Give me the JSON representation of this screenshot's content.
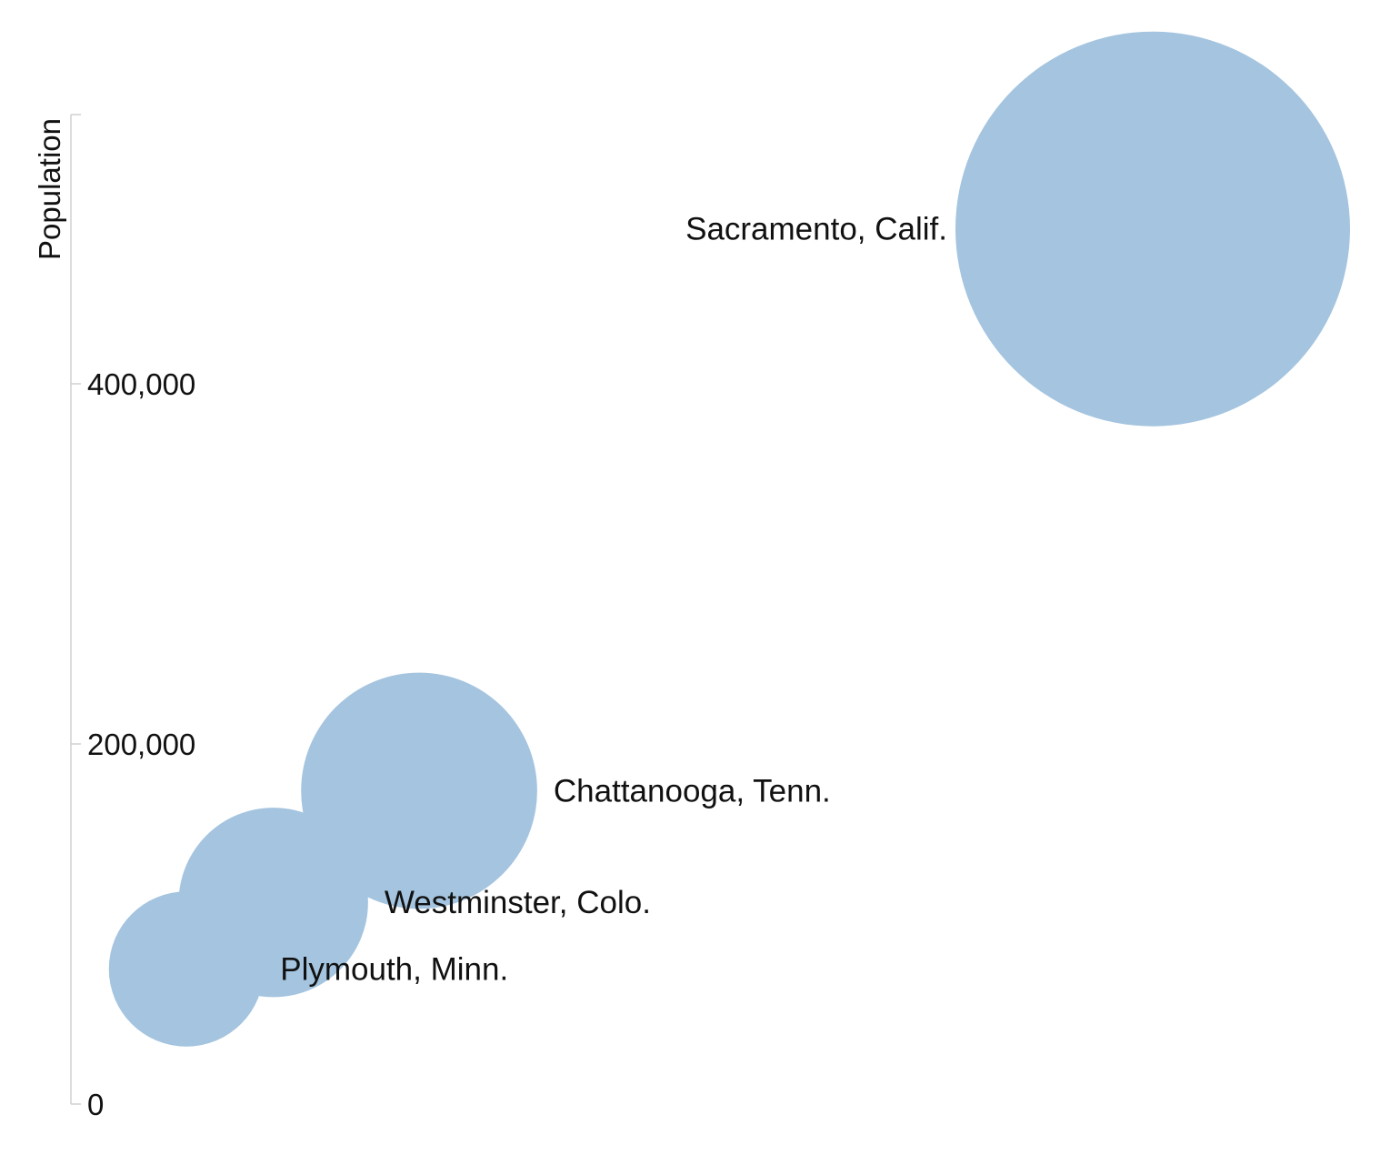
{
  "chart_data": {
    "type": "scatter",
    "ylabel": "Population",
    "ylim": [
      0,
      550000
    ],
    "y_ticks": [
      {
        "value": 0,
        "label": "0"
      },
      {
        "value": 200000,
        "label": "200,000"
      },
      {
        "value": 400000,
        "label": "400,000"
      }
    ],
    "bubble_color": "#a4c4df",
    "axis_color": "#d0d0d0",
    "points": [
      {
        "name": "Plymouth, Minn.",
        "population": 75000,
        "label_side": "right"
      },
      {
        "name": "Westminster, Colo.",
        "population": 112000,
        "label_side": "right"
      },
      {
        "name": "Chattanooga, Tenn.",
        "population": 174000,
        "label_side": "right"
      },
      {
        "name": "Sacramento, Calif.",
        "population": 486000,
        "label_side": "left"
      }
    ]
  }
}
